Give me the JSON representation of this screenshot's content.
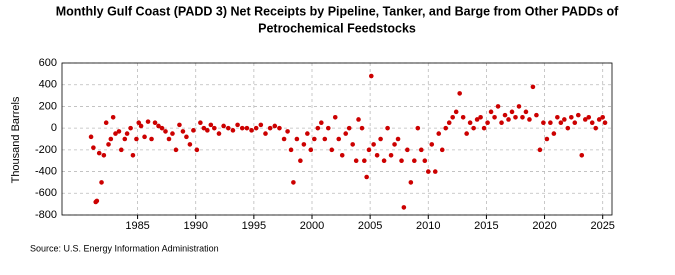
{
  "chart_data": {
    "type": "scatter",
    "title": [
      "Monthly Gulf Coast (PADD 3) Net Receipts by Pipeline, Tanker, and Barge from Other PADDs of",
      "Petrochemical Feedstocks"
    ],
    "y_label": "Thousand Barrels",
    "source": "Source: U.S. Energy Information Administration",
    "color": "#cc0000",
    "grid": true,
    "xlim": [
      1978.5,
      2025.8
    ],
    "xticks": [
      1985,
      1990,
      1995,
      2000,
      2005,
      2010,
      2015,
      2020,
      2025
    ],
    "ylim": [
      -800,
      600
    ],
    "yticks": [
      -800,
      -600,
      -400,
      -200,
      0,
      200,
      400,
      600
    ],
    "x": [
      1981.0,
      1981.2,
      1981.4,
      1981.5,
      1981.7,
      1981.9,
      1982.1,
      1982.3,
      1982.5,
      1982.7,
      1982.9,
      1983.1,
      1983.4,
      1983.6,
      1983.9,
      1984.1,
      1984.4,
      1984.6,
      1984.9,
      1985.1,
      1985.3,
      1985.6,
      1985.9,
      1986.2,
      1986.5,
      1986.8,
      1987.1,
      1987.4,
      1987.7,
      1988.0,
      1988.3,
      1988.6,
      1988.9,
      1989.2,
      1989.5,
      1989.8,
      1990.1,
      1990.4,
      1990.7,
      1991.0,
      1991.3,
      1991.6,
      1992.0,
      1992.4,
      1992.8,
      1993.2,
      1993.6,
      1994.0,
      1994.4,
      1994.8,
      1995.2,
      1995.6,
      1996.0,
      1996.4,
      1996.8,
      1997.2,
      1997.6,
      1997.9,
      1998.2,
      1998.4,
      1998.7,
      1999.0,
      1999.3,
      1999.6,
      1999.9,
      2000.2,
      2000.5,
      2000.8,
      2001.1,
      2001.4,
      2001.7,
      2002.0,
      2002.3,
      2002.6,
      2002.9,
      2003.2,
      2003.5,
      2003.8,
      2004.0,
      2004.3,
      2004.5,
      2004.7,
      2004.9,
      2005.1,
      2005.3,
      2005.6,
      2005.9,
      2006.2,
      2006.5,
      2006.8,
      2007.1,
      2007.4,
      2007.7,
      2007.9,
      2008.2,
      2008.5,
      2008.8,
      2009.1,
      2009.4,
      2009.7,
      2010.0,
      2010.3,
      2010.6,
      2010.9,
      2011.2,
      2011.5,
      2011.8,
      2012.1,
      2012.4,
      2012.7,
      2013.0,
      2013.3,
      2013.6,
      2013.9,
      2014.2,
      2014.5,
      2014.8,
      2015.1,
      2015.4,
      2015.7,
      2016.0,
      2016.3,
      2016.6,
      2016.9,
      2017.2,
      2017.5,
      2017.8,
      2018.1,
      2018.4,
      2018.7,
      2019.0,
      2019.3,
      2019.6,
      2019.9,
      2020.2,
      2020.5,
      2020.8,
      2021.1,
      2021.4,
      2021.7,
      2022.0,
      2022.3,
      2022.6,
      2022.9,
      2023.2,
      2023.5,
      2023.8,
      2024.1,
      2024.4,
      2024.7,
      2025.0,
      2025.2
    ],
    "values": [
      -80,
      -180,
      -680,
      -670,
      -230,
      -500,
      -250,
      50,
      -150,
      -100,
      100,
      -50,
      -30,
      -200,
      -100,
      -50,
      0,
      -250,
      -100,
      50,
      20,
      -80,
      60,
      -100,
      50,
      20,
      0,
      -30,
      -100,
      -50,
      -200,
      30,
      -30,
      -80,
      -150,
      -20,
      -200,
      50,
      0,
      -20,
      30,
      0,
      -50,
      20,
      0,
      -20,
      30,
      0,
      0,
      -20,
      0,
      30,
      -50,
      0,
      20,
      0,
      -100,
      -30,
      -200,
      -500,
      -100,
      -300,
      -150,
      -50,
      -200,
      -100,
      0,
      50,
      -100,
      0,
      -200,
      100,
      -100,
      -250,
      -50,
      0,
      -150,
      -300,
      80,
      0,
      -300,
      -450,
      -200,
      480,
      -150,
      -250,
      -100,
      -300,
      0,
      -250,
      -150,
      -100,
      -300,
      -730,
      -200,
      -500,
      -300,
      0,
      -200,
      -300,
      -400,
      -150,
      -400,
      -50,
      -200,
      0,
      50,
      100,
      150,
      320,
      100,
      -50,
      50,
      0,
      80,
      100,
      0,
      50,
      150,
      100,
      200,
      50,
      120,
      80,
      150,
      100,
      200,
      100,
      150,
      80,
      380,
      120,
      -200,
      50,
      -100,
      50,
      -50,
      100,
      50,
      80,
      0,
      100,
      50,
      120,
      -250,
      80,
      100,
      50,
      0,
      80,
      100,
      50
    ]
  }
}
